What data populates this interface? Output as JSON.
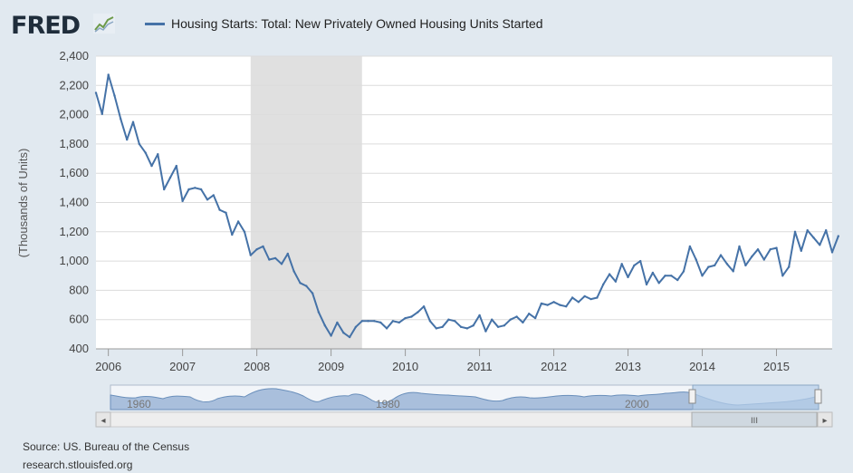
{
  "header": {
    "logo_text": "FRED",
    "legend_label": "Housing Starts: Total: New Privately Owned Housing Units Started"
  },
  "footer": {
    "source": "Source: US. Bureau of the Census",
    "site": "research.stlouisfed.org"
  },
  "navigator": {
    "tick_labels": [
      "1960",
      "1980",
      "2000"
    ],
    "scrollbar_grip": "III",
    "left_arrow": "◂",
    "right_arrow": "▸"
  },
  "colors": {
    "series": "#4572a7",
    "recession": "#e0e0e0",
    "background": "#e1e9f0",
    "plot": "#ffffff",
    "navigator_fill": "#a9bfdc",
    "navigator_selection": "#b5cde8"
  },
  "chart_data": {
    "type": "line",
    "title": "",
    "xlabel": "",
    "ylabel": "(Thousands of Units)",
    "ylim": [
      400,
      2400
    ],
    "yticks": [
      400,
      600,
      800,
      1000,
      1200,
      1400,
      1600,
      1800,
      2000,
      2200,
      2400
    ],
    "ytick_labels": [
      "400",
      "600",
      "800",
      "1,000",
      "1,200",
      "1,400",
      "1,600",
      "1,800",
      "2,000",
      "2,200",
      "2,400"
    ],
    "xlim": [
      "2005-11",
      "2015-10"
    ],
    "xtick_labels": [
      "2006",
      "2007",
      "2008",
      "2009",
      "2010",
      "2011",
      "2012",
      "2013",
      "2014",
      "2015"
    ],
    "grid": "horizontal",
    "legend": "top",
    "recession_shading": [
      {
        "start": "2007-12",
        "end": "2009-06"
      }
    ],
    "series": [
      {
        "name": "Housing Starts: Total: New Privately Owned Housing Units Started",
        "start": "2005-11",
        "frequency": "monthly",
        "values": [
          2150,
          2005,
          2273,
          2130,
          1970,
          1830,
          1950,
          1800,
          1740,
          1650,
          1730,
          1490,
          1570,
          1650,
          1410,
          1490,
          1500,
          1490,
          1420,
          1450,
          1350,
          1330,
          1180,
          1270,
          1200,
          1040,
          1080,
          1100,
          1010,
          1020,
          980,
          1050,
          930,
          850,
          830,
          780,
          650,
          560,
          490,
          580,
          510,
          480,
          550,
          590,
          590,
          590,
          580,
          540,
          590,
          580,
          610,
          620,
          650,
          690,
          590,
          540,
          550,
          600,
          590,
          550,
          540,
          560,
          630,
          520,
          600,
          550,
          560,
          600,
          620,
          580,
          640,
          610,
          710,
          700,
          720,
          700,
          690,
          750,
          720,
          760,
          740,
          750,
          840,
          910,
          860,
          980,
          890,
          970,
          1000,
          840,
          920,
          850,
          900,
          900,
          870,
          930,
          1100,
          1010,
          900,
          960,
          970,
          1040,
          980,
          930,
          1100,
          970,
          1030,
          1080,
          1010,
          1080,
          1090,
          900,
          960,
          1200,
          1070,
          1210,
          1160,
          1110,
          1210,
          1060,
          1170
        ]
      }
    ]
  }
}
